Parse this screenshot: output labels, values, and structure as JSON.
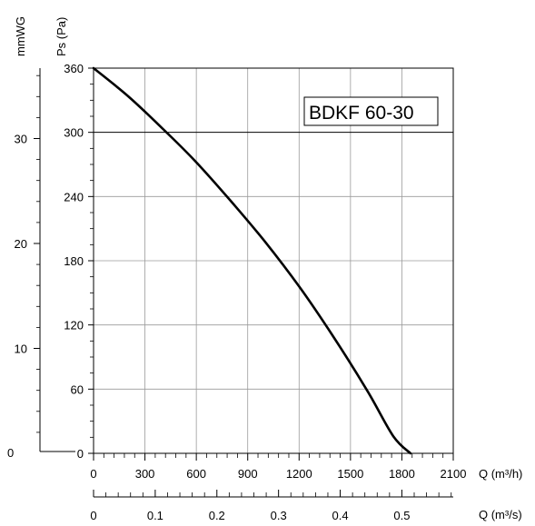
{
  "chart_data": {
    "type": "line",
    "model_label": "BDKF 60-30",
    "ylabel": "Ps (Pa)",
    "ylabel_secondary": "mmWG",
    "xlabel": "Q (m³/h)",
    "xlabel_secondary": "Q (m³/s)",
    "xlim": [
      0,
      2100
    ],
    "ylim": [
      0,
      360
    ],
    "x_ticks": [
      "0",
      "300",
      "600",
      "900",
      "1200",
      "1500",
      "1800",
      "2100"
    ],
    "y_ticks": [
      "0",
      "60",
      "120",
      "180",
      "240",
      "300",
      "360"
    ],
    "y2_ticks": [
      "0",
      "10",
      "20",
      "30"
    ],
    "x2_ticks": [
      "0",
      "0.1",
      "0.2",
      "0.3",
      "0.4",
      "0.5"
    ],
    "grid": true,
    "series": [
      {
        "x": [
          0,
          200,
          400,
          600,
          800,
          1000,
          1200,
          1400,
          1600,
          1750,
          1850
        ],
        "y": [
          360,
          334,
          304,
          272,
          236,
          198,
          156,
          109,
          58,
          16,
          0
        ]
      }
    ]
  }
}
